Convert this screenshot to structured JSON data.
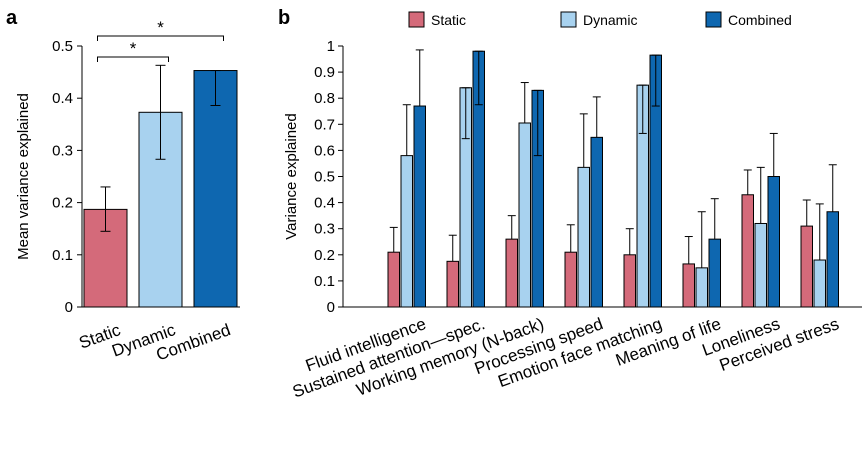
{
  "colors": {
    "static": "#d46a7a",
    "dynamic": "#a8d2ef",
    "combined": "#0e67b0"
  },
  "chart_data": [
    {
      "panel": "a",
      "type": "bar",
      "categories": [
        "Static",
        "Dynamic",
        "Combined"
      ],
      "values": [
        0.187,
        0.373,
        0.453
      ],
      "errors_low": [
        0.145,
        0.283,
        0.386
      ],
      "errors_high": [
        0.23,
        0.463,
        0.453
      ],
      "ylabel": "Mean variance explained",
      "ylim": [
        0,
        0.5
      ],
      "yticks": [
        "0",
        "0.1",
        "0.2",
        "0.3",
        "0.4",
        "0.5"
      ],
      "significance": [
        {
          "from": 0,
          "to": 1,
          "label": "*"
        },
        {
          "from": 0,
          "to": 2,
          "label": "*"
        }
      ]
    },
    {
      "panel": "b",
      "type": "bar",
      "categories": [
        "Fluid intelligence",
        "Sustained attention—spec.",
        "Working memory (N-back)",
        "Processing speed",
        "Emotion face matching",
        "Meaning of life",
        "Loneliness",
        "Perceived stress"
      ],
      "series": [
        {
          "name": "Static",
          "values": [
            0.21,
            0.175,
            0.26,
            0.21,
            0.2,
            0.165,
            0.43,
            0.31
          ],
          "errors_low": [
            0.21,
            0.175,
            0.26,
            0.21,
            0.2,
            0.165,
            0.43,
            0.31
          ],
          "errors_high": [
            0.305,
            0.275,
            0.35,
            0.315,
            0.3,
            0.27,
            0.525,
            0.41
          ]
        },
        {
          "name": "Dynamic",
          "values": [
            0.58,
            0.84,
            0.705,
            0.535,
            0.85,
            0.15,
            0.32,
            0.18
          ],
          "errors_low": [
            0.58,
            0.645,
            0.705,
            0.535,
            0.665,
            0.15,
            0.32,
            0.18
          ],
          "errors_high": [
            0.775,
            0.84,
            0.86,
            0.74,
            0.85,
            0.365,
            0.535,
            0.395
          ]
        },
        {
          "name": "Combined",
          "values": [
            0.77,
            0.98,
            0.83,
            0.65,
            0.965,
            0.26,
            0.5,
            0.365
          ],
          "errors_low": [
            0.77,
            0.775,
            0.58,
            0.65,
            0.77,
            0.26,
            0.5,
            0.365
          ],
          "errors_high": [
            0.985,
            0.98,
            0.83,
            0.805,
            0.965,
            0.415,
            0.665,
            0.545
          ]
        }
      ],
      "ylabel": "Variance explained",
      "ylim": [
        0,
        1
      ],
      "yticks": [
        "0",
        "0.1",
        "0.2",
        "0.3",
        "0.4",
        "0.5",
        "0.6",
        "0.7",
        "0.8",
        "0.9",
        "1"
      ],
      "legend": "top"
    }
  ]
}
